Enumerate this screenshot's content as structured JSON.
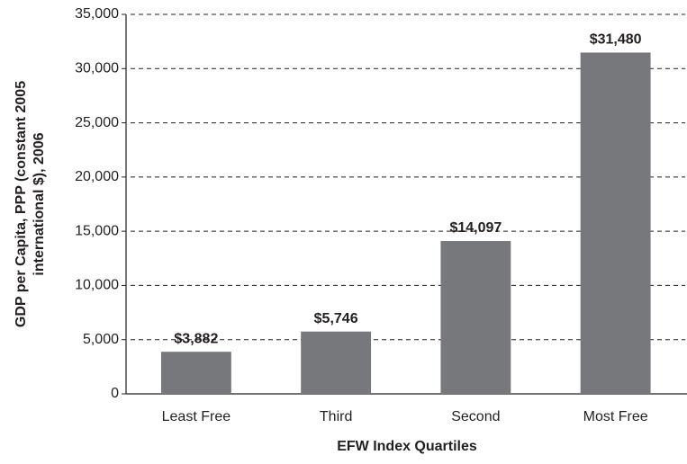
{
  "chart_data": {
    "type": "bar",
    "x_label": "EFW Index Quartiles",
    "y_label": [
      "GDP per Capita, PPP (constant 2005",
      "international $), 2006"
    ],
    "categories": [
      "Least Free",
      "Third",
      "Second",
      "Most Free"
    ],
    "values": [
      3882,
      5746,
      14097,
      31480
    ],
    "value_labels": [
      "$3,882",
      "$5,746",
      "$14,097",
      "$31,480"
    ],
    "color": "#77787b",
    "ylim": [
      0,
      35000
    ],
    "yticks": [
      0,
      {
        "value": 5000,
        "label": "5,000"
      },
      {
        "value": 10000,
        "label": "10,000"
      },
      {
        "value": 15000,
        "label": "15,000"
      },
      {
        "value": 20000,
        "label": "20,000"
      },
      {
        "value": 25000,
        "label": "25,000"
      },
      {
        "value": 30000,
        "label": "30,000"
      },
      {
        "value": 35000,
        "label": "35,000"
      }
    ],
    "grid": true
  }
}
